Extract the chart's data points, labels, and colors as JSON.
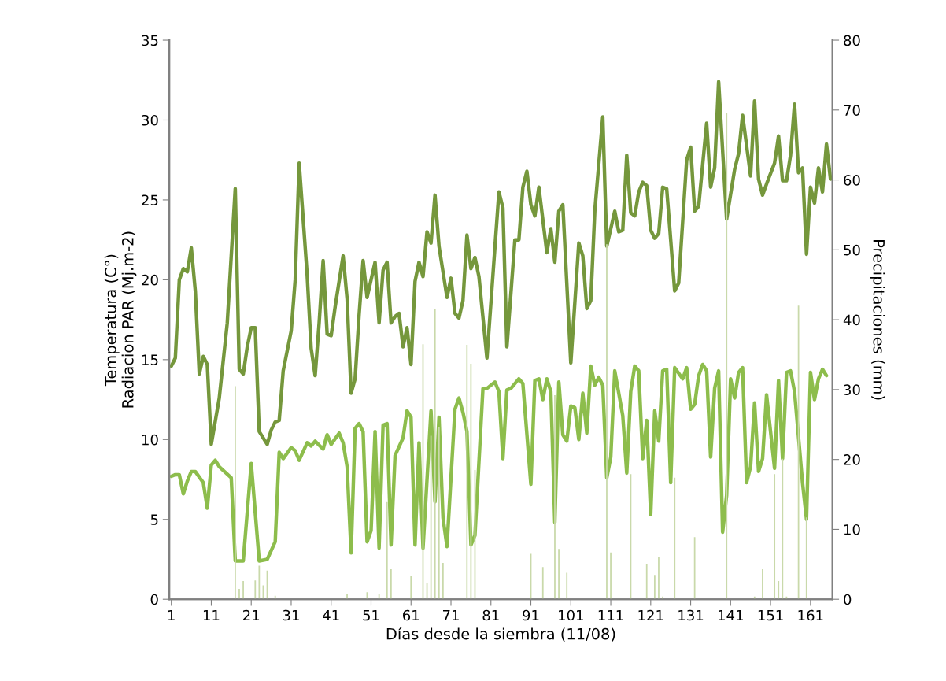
{
  "chart_data": {
    "type": "line",
    "xlabel": "Días desde la siembra (11/08)",
    "ylabel": "Temperatura (C°)\nRadiacion PAR (Mj.m-2)",
    "y2label": "Precipitaciones (mm)",
    "xlim": [
      0.5,
      166.5
    ],
    "xticks": [
      1,
      11,
      21,
      31,
      41,
      51,
      61,
      71,
      81,
      91,
      101,
      111,
      121,
      131,
      141,
      151,
      161
    ],
    "ylim": [
      0,
      35
    ],
    "yticks": [
      0,
      5,
      10,
      15,
      20,
      25,
      30,
      35
    ],
    "y2lim": [
      0,
      80
    ],
    "y2ticks": [
      0,
      10,
      20,
      30,
      40,
      50,
      60,
      70,
      80
    ],
    "grid": false,
    "legend": false,
    "line_style": "solid",
    "marker": "none",
    "series": [
      {
        "type": "bar",
        "axis": "y2",
        "color": "#c9d9aa",
        "x": [
          17,
          18,
          19,
          22,
          23,
          24,
          25,
          27,
          45,
          50,
          53,
          55,
          56,
          61,
          64,
          65,
          66,
          67,
          68,
          69,
          75,
          76,
          77,
          91,
          94,
          97,
          98,
          100,
          110,
          111,
          116,
          120,
          122,
          123,
          124,
          127,
          132,
          140,
          147,
          149,
          152,
          153,
          154,
          155,
          158,
          160
        ],
        "values": [
          30.5,
          1.5,
          2.6,
          2.7,
          4.8,
          2.0,
          4.1,
          0.5,
          0.7,
          1.0,
          0.7,
          13.9,
          4.3,
          3.3,
          36.5,
          2.4,
          23.4,
          41.5,
          24.6,
          5.2,
          36.4,
          33.7,
          18.5,
          6.5,
          4.6,
          29.2,
          7.2,
          3.8,
          50.8,
          6.7,
          17.9,
          5.0,
          3.5,
          6.0,
          0.4,
          17.4,
          8.9,
          69.6,
          0.4,
          4.3,
          17.9,
          2.6,
          20.1,
          0.4,
          42.0,
          11.7
        ]
      },
      {
        "axis": "y",
        "color": "#75973c",
        "x": [
          1,
          2,
          3,
          4,
          5,
          6,
          7,
          8,
          9,
          10,
          11,
          13,
          15,
          17,
          18,
          19,
          20,
          21,
          22,
          23,
          25,
          26,
          27,
          28,
          29,
          31,
          32,
          33,
          35,
          36,
          37,
          38,
          39,
          40,
          41,
          42,
          44,
          45,
          46,
          47,
          48,
          49,
          50,
          52,
          53,
          54,
          55,
          56,
          57,
          58,
          59,
          60,
          61,
          62,
          63,
          64,
          65,
          66,
          67,
          68,
          70,
          71,
          72,
          73,
          74,
          75,
          76,
          77,
          78,
          80,
          83,
          84,
          85,
          87,
          88,
          89,
          90,
          91,
          92,
          93,
          95,
          96,
          97,
          98,
          99,
          101,
          103,
          104,
          105,
          106,
          107,
          109,
          110,
          112,
          113,
          114,
          115,
          116,
          117,
          118,
          119,
          120,
          121,
          122,
          123,
          124,
          125,
          127,
          128,
          130,
          131,
          132,
          133,
          135,
          136,
          137,
          138,
          140,
          142,
          143,
          144,
          146,
          147,
          148,
          149,
          150,
          152,
          153,
          154,
          155,
          156,
          157,
          158,
          159,
          160,
          161,
          162,
          163,
          164,
          165,
          166
        ],
        "values": [
          14.6,
          15.1,
          20.0,
          20.7,
          20.5,
          22.0,
          19.3,
          14.1,
          15.2,
          14.7,
          9.7,
          12.6,
          17.3,
          25.7,
          14.4,
          14.1,
          15.8,
          17.0,
          17.0,
          10.5,
          9.7,
          10.6,
          11.1,
          11.2,
          14.3,
          16.8,
          20.0,
          27.3,
          20.3,
          15.7,
          14.0,
          17.3,
          21.2,
          16.6,
          16.5,
          18.3,
          21.5,
          18.8,
          12.9,
          13.8,
          17.8,
          21.2,
          18.9,
          21.1,
          17.3,
          20.6,
          21.1,
          17.3,
          17.7,
          17.9,
          15.8,
          17.0,
          14.7,
          19.9,
          21.1,
          20.2,
          23.0,
          22.3,
          25.3,
          22.1,
          18.9,
          20.1,
          17.9,
          17.6,
          18.7,
          22.8,
          20.7,
          21.4,
          20.2,
          15.1,
          25.5,
          24.5,
          15.8,
          22.5,
          22.5,
          25.8,
          26.8,
          24.7,
          24.0,
          25.8,
          21.7,
          23.2,
          21.1,
          24.3,
          24.7,
          14.8,
          22.3,
          21.5,
          18.2,
          18.7,
          24.3,
          30.2,
          22.1,
          24.3,
          23.0,
          23.1,
          27.8,
          24.2,
          24.0,
          25.5,
          26.1,
          25.9,
          23.1,
          22.6,
          22.9,
          25.8,
          25.7,
          19.3,
          19.8,
          27.5,
          28.3,
          24.3,
          24.6,
          29.8,
          25.8,
          27.0,
          32.4,
          23.8,
          26.9,
          27.9,
          30.3,
          26.5,
          31.2,
          26.3,
          25.3,
          26.0,
          27.3,
          29.0,
          26.2,
          26.2,
          27.8,
          31.0,
          26.7,
          27.0,
          21.6,
          25.8,
          24.8,
          27.0,
          25.5,
          28.5,
          26.3
        ]
      },
      {
        "axis": "y",
        "color": "#8dbd4c",
        "x": [
          1,
          2,
          3,
          4,
          5,
          6,
          7,
          9,
          10,
          11,
          12,
          13,
          16,
          17,
          19,
          21,
          23,
          25,
          27,
          28,
          29,
          31,
          32,
          33,
          35,
          36,
          37,
          39,
          40,
          41,
          43,
          44,
          45,
          46,
          47,
          48,
          49,
          50,
          51,
          52,
          53,
          54,
          55,
          56,
          57,
          59,
          60,
          61,
          62,
          63,
          64,
          66,
          67,
          68,
          69,
          70,
          72,
          73,
          74,
          75,
          76,
          77,
          79,
          80,
          82,
          83,
          84,
          85,
          86,
          88,
          89,
          91,
          92,
          93,
          94,
          95,
          96,
          97,
          98,
          99,
          100,
          101,
          102,
          103,
          104,
          105,
          106,
          107,
          108,
          109,
          110,
          111,
          112,
          114,
          115,
          116,
          117,
          118,
          119,
          120,
          121,
          122,
          123,
          124,
          125,
          126,
          127,
          129,
          130,
          131,
          132,
          133,
          134,
          135,
          136,
          137,
          138,
          139,
          140,
          141,
          142,
          143,
          144,
          145,
          146,
          147,
          148,
          149,
          150,
          151,
          152,
          153,
          154,
          155,
          156,
          157,
          159,
          160,
          161,
          162,
          163,
          164,
          165
        ],
        "values": [
          7.7,
          7.8,
          7.8,
          6.6,
          7.4,
          8.0,
          8.0,
          7.3,
          5.7,
          8.4,
          8.7,
          8.3,
          7.6,
          2.4,
          2.4,
          8.5,
          2.4,
          2.5,
          3.6,
          9.2,
          8.8,
          9.5,
          9.3,
          8.7,
          9.8,
          9.6,
          9.9,
          9.4,
          10.3,
          9.7,
          10.4,
          9.8,
          8.3,
          2.9,
          10.7,
          11.0,
          10.5,
          3.6,
          4.3,
          10.5,
          3.2,
          10.9,
          11.0,
          3.4,
          9.0,
          10.1,
          11.8,
          11.4,
          3.4,
          9.8,
          3.2,
          11.8,
          6.1,
          11.4,
          5.1,
          3.3,
          11.9,
          12.6,
          11.7,
          10.5,
          3.4,
          4.0,
          13.2,
          13.2,
          13.6,
          13.0,
          8.8,
          13.1,
          13.2,
          13.8,
          13.5,
          7.2,
          13.7,
          13.8,
          12.5,
          13.8,
          13.0,
          4.8,
          13.6,
          10.3,
          9.9,
          12.1,
          12.0,
          10.0,
          12.9,
          10.4,
          14.6,
          13.4,
          13.9,
          13.4,
          7.6,
          8.9,
          14.3,
          11.5,
          7.9,
          13.0,
          14.6,
          14.3,
          8.8,
          11.2,
          5.3,
          11.8,
          9.9,
          14.3,
          14.4,
          7.3,
          14.5,
          13.8,
          14.5,
          11.9,
          12.2,
          14.0,
          14.7,
          14.3,
          8.9,
          13.2,
          14.3,
          4.2,
          6.5,
          13.8,
          12.6,
          14.2,
          14.5,
          7.3,
          8.3,
          12.3,
          8.0,
          8.8,
          12.8,
          10.5,
          8.2,
          13.7,
          8.8,
          14.2,
          14.3,
          13.0,
          7.3,
          5.0,
          14.2,
          12.5,
          13.8,
          14.4,
          14.0
        ]
      }
    ]
  }
}
